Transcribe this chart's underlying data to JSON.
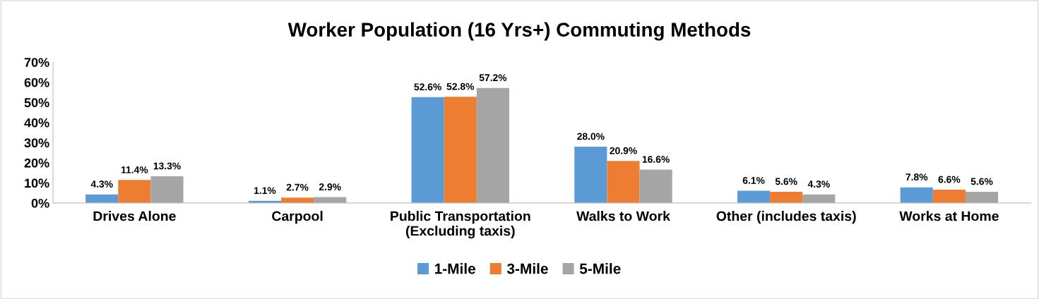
{
  "chart_data": {
    "type": "bar",
    "title": "Worker Population (16 Yrs+) Commuting Methods",
    "categories": [
      "Drives Alone",
      "Carpool",
      "Public Transportation\n(Excluding taxis)",
      "Walks to Work",
      "Other (includes taxis)",
      "Works at Home"
    ],
    "series": [
      {
        "name": "1-Mile",
        "color": "#5b9bd5",
        "values": [
          4.3,
          1.1,
          52.6,
          28.0,
          6.1,
          7.8
        ],
        "value_labels": [
          "4.3%",
          "1.1%",
          "52.6%",
          "28.0%",
          "6.1%",
          "7.8%"
        ]
      },
      {
        "name": "3-Mile",
        "color": "#ed7d31",
        "values": [
          11.4,
          2.7,
          52.8,
          20.9,
          5.6,
          6.6
        ],
        "value_labels": [
          "11.4%",
          "2.7%",
          "52.8%",
          "20.9%",
          "5.6%",
          "6.6%"
        ]
      },
      {
        "name": "5-Mile",
        "color": "#a5a5a5",
        "values": [
          13.3,
          2.9,
          57.2,
          16.6,
          4.3,
          5.6
        ],
        "value_labels": [
          "13.3%",
          "2.9%",
          "57.2%",
          "16.6%",
          "4.3%",
          "5.6%"
        ]
      }
    ],
    "ylim": [
      0,
      70
    ],
    "yticks": [
      {
        "value": 0,
        "label": "0%"
      },
      {
        "value": 10,
        "label": "10%"
      },
      {
        "value": 20,
        "label": "20%"
      },
      {
        "value": 30,
        "label": "30%"
      },
      {
        "value": 40,
        "label": "40%"
      },
      {
        "value": 50,
        "label": "50%"
      },
      {
        "value": 60,
        "label": "60%"
      },
      {
        "value": 70,
        "label": "70%"
      }
    ],
    "grid": false,
    "legend": "bottom"
  }
}
